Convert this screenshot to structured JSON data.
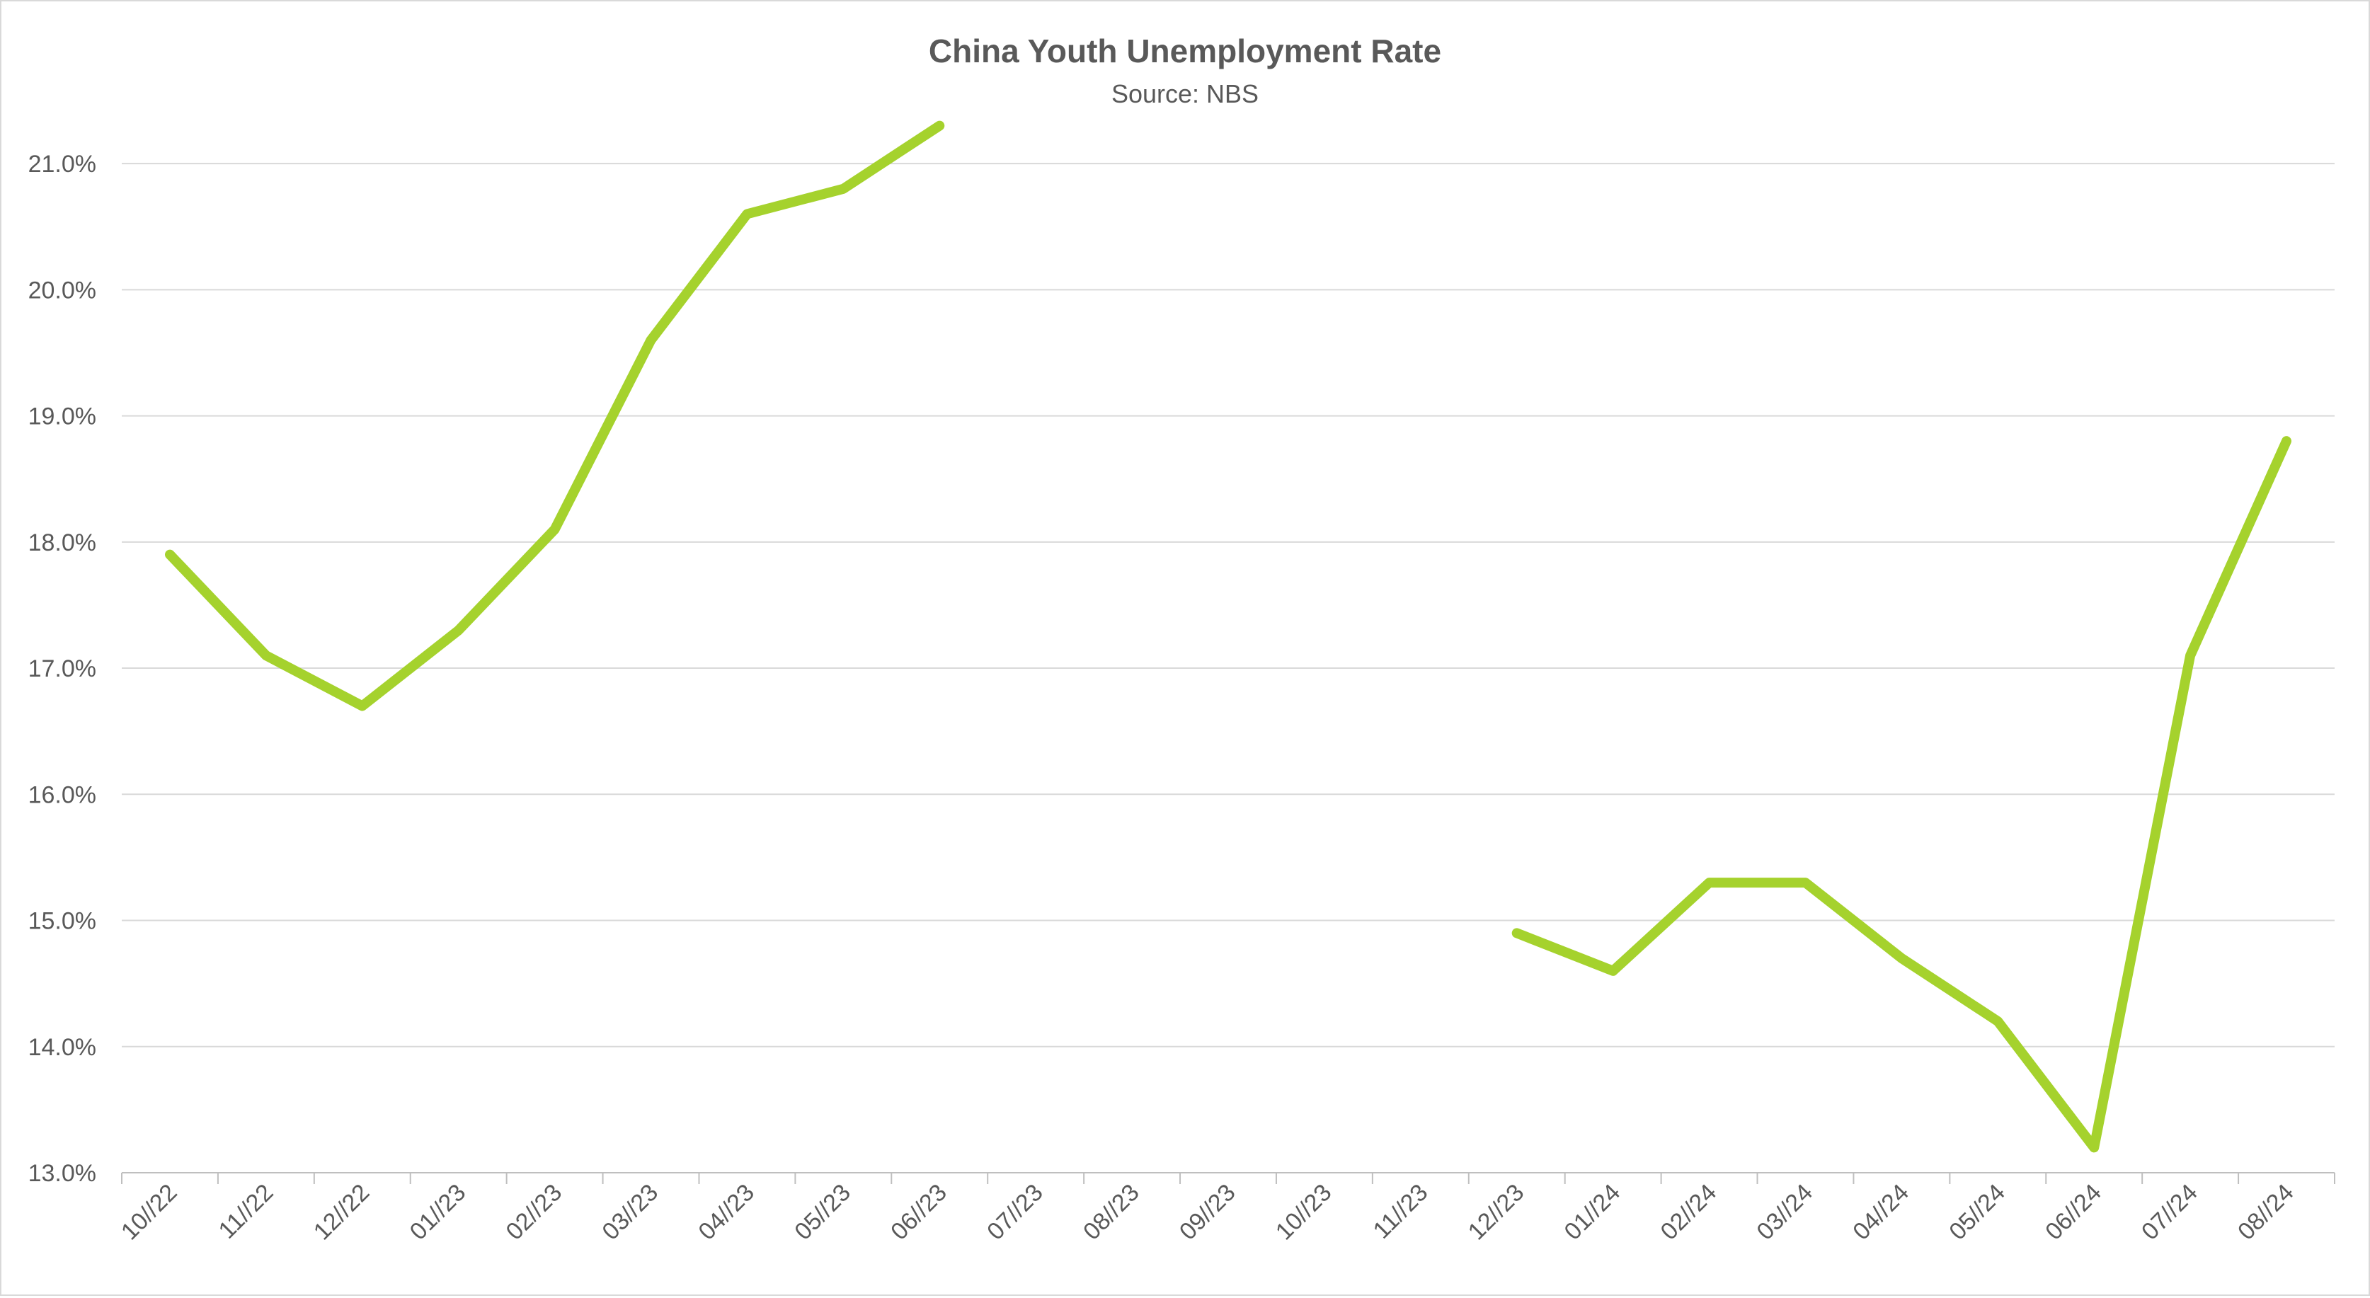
{
  "chart_data": {
    "type": "line",
    "title": "China Youth Unemployment Rate",
    "subtitle": "Source: NBS",
    "xlabel": "",
    "ylabel": "",
    "categories": [
      "10//22",
      "11//22",
      "12//22",
      "01//23",
      "02//23",
      "03//23",
      "04//23",
      "05//23",
      "06//23",
      "07//23",
      "08//23",
      "09//23",
      "10//23",
      "11//23",
      "12//23",
      "01//24",
      "02//24",
      "03//24",
      "04//24",
      "05//24",
      "06//24",
      "07//24",
      "08//24"
    ],
    "series": [
      {
        "values": [
          17.9,
          17.1,
          16.7,
          17.3,
          18.1,
          19.6,
          20.6,
          20.8,
          21.3,
          null,
          null,
          null,
          null,
          null,
          14.9,
          14.6,
          15.3,
          15.3,
          14.7,
          14.2,
          13.2,
          17.1,
          18.8
        ],
        "color": "#a5d22d"
      }
    ],
    "ylim": [
      13.0,
      21.5
    ],
    "yticks": [
      13.0,
      14.0,
      15.0,
      16.0,
      17.0,
      18.0,
      19.0,
      20.0,
      21.0
    ],
    "ytick_labels": [
      "13.0%",
      "14.0%",
      "15.0%",
      "16.0%",
      "17.0%",
      "18.0%",
      "19.0%",
      "20.0%",
      "21.0%"
    ],
    "grid": true,
    "legend": "none"
  }
}
